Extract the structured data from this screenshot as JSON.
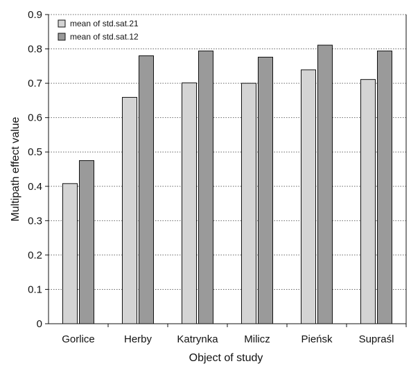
{
  "chart_data": {
    "type": "bar",
    "title": "",
    "xlabel": "Object of study",
    "ylabel": "Multipath effect value",
    "ylim": [
      0,
      0.9
    ],
    "yticks": [
      0,
      0.1,
      0.2,
      0.3,
      0.4,
      0.5,
      0.6,
      0.7,
      0.8,
      0.9
    ],
    "ytick_labels": [
      "0",
      "0.1",
      "0.2",
      "0.3",
      "0.4",
      "0.5",
      "0.6",
      "0.7",
      "0.8",
      "0.9"
    ],
    "grid": "horizontal dotted",
    "legend_position": "top-left",
    "categories": [
      "Gorlice",
      "Herby",
      "Katrynka",
      "Milicz",
      "Pieńsk",
      "Supraśl"
    ],
    "series": [
      {
        "name": "mean of std.sat.21",
        "color": "#d4d4d4",
        "values": [
          0.408,
          0.659,
          0.701,
          0.7,
          0.739,
          0.711
        ]
      },
      {
        "name": "mean of std.sat.12",
        "color": "#9a9a9a",
        "values": [
          0.475,
          0.78,
          0.794,
          0.776,
          0.811,
          0.794
        ]
      }
    ]
  }
}
